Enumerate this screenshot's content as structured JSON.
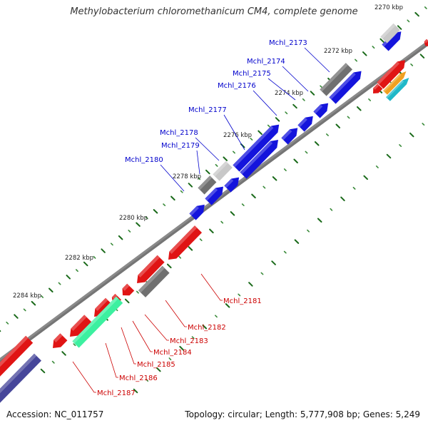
{
  "title": "Methylobacterium chloromethanicum CM4, complete genome",
  "footer": {
    "accession_label": "Accession:",
    "accession": "NC_011757",
    "topology_label": "Topology:",
    "topology": "circular",
    "length_label": "Length:",
    "length": "5,777,908 bp",
    "genes_label": "Genes:",
    "genes": "5,249"
  },
  "colors": {
    "backbone": "#8a8a8a",
    "forward_gene": "#1414dc",
    "reverse_gene": "#e01414",
    "gray_gene": "#707070",
    "light_gray_gene": "#c8c8c8",
    "teal_gene": "#3cf0a0",
    "navy_gene": "#46469a",
    "orange_gene": "#f0a020",
    "cyan_gene": "#20b8c8",
    "tick_minor": "#3a8a3a",
    "tick_major": "#1a6a1a",
    "label_forward": "#0000cc",
    "label_reverse": "#cc0000"
  },
  "kbp_labels": [
    "2270 kbp",
    "2272 kbp",
    "2274 kbp",
    "2276 kbp",
    "2278 kbp",
    "2280 kbp",
    "2282 kbp",
    "2284 kbp"
  ],
  "genes_forward": [
    "Mchl_2173",
    "Mchl_2174",
    "Mchl_2175",
    "Mchl_2176",
    "Mchl_2177",
    "Mchl_2178",
    "Mchl_2179",
    "Mchl_2180"
  ],
  "genes_reverse": [
    "Mchl_2181",
    "Mchl_2182",
    "Mchl_2183",
    "Mchl_2184",
    "Mchl_2185",
    "Mchl_2186",
    "Mchl_2187"
  ]
}
